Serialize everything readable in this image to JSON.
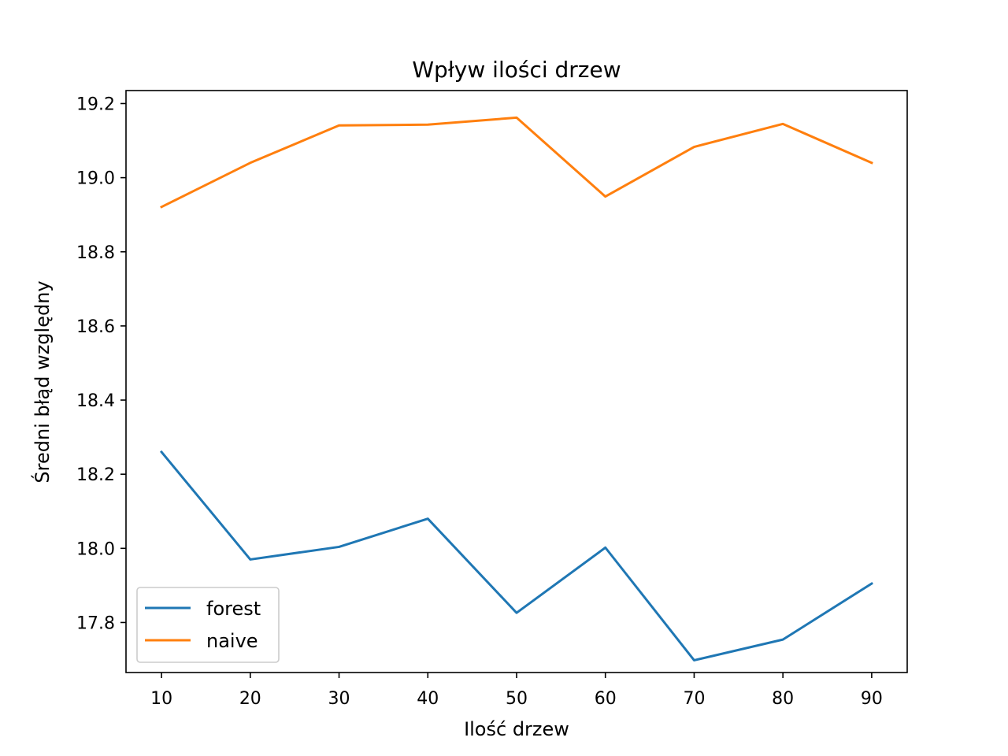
{
  "chart_data": {
    "type": "line",
    "title": "Wpływ ilości drzew",
    "xlabel": "Ilość drzew",
    "ylabel": "Średni błąd względny",
    "x": [
      10,
      20,
      30,
      40,
      50,
      60,
      70,
      80,
      90
    ],
    "xlim": [
      6,
      94
    ],
    "ylim": [
      17.665,
      19.235
    ],
    "x_ticks": [
      10,
      20,
      30,
      40,
      50,
      60,
      70,
      80,
      90
    ],
    "y_ticks": [
      "17.8",
      "18.0",
      "18.2",
      "18.4",
      "18.6",
      "18.8",
      "19.0",
      "19.2"
    ],
    "grid": false,
    "legend_position": "lower-left",
    "series": [
      {
        "name": "forest",
        "color": "#1f77b4",
        "values": [
          18.26,
          17.97,
          18.004,
          18.08,
          17.826,
          18.002,
          17.698,
          17.754,
          17.905
        ]
      },
      {
        "name": "naive",
        "color": "#ff7f0e",
        "values": [
          18.921,
          19.04,
          19.141,
          19.143,
          19.162,
          18.949,
          19.083,
          19.145,
          19.04
        ]
      }
    ]
  }
}
